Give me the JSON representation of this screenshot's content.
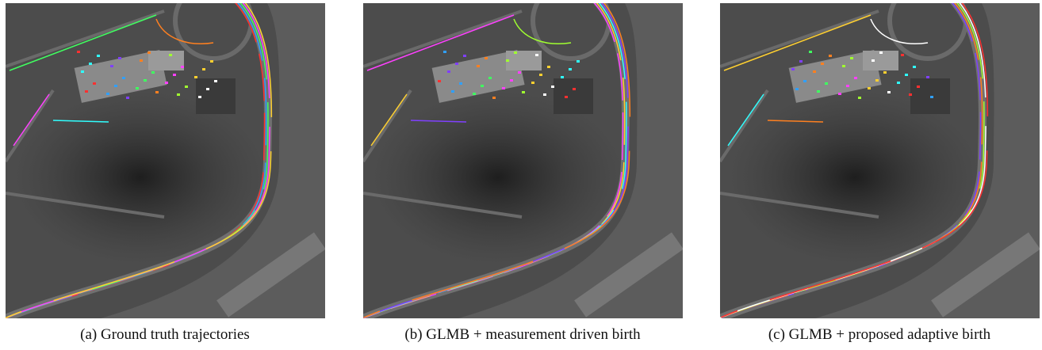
{
  "figure": {
    "panels": [
      {
        "caption": "(a) Ground truth trajectories"
      },
      {
        "caption": "(b) GLMB + measurement driven birth"
      },
      {
        "caption": "(c) GLMB + proposed adaptive birth"
      }
    ]
  }
}
